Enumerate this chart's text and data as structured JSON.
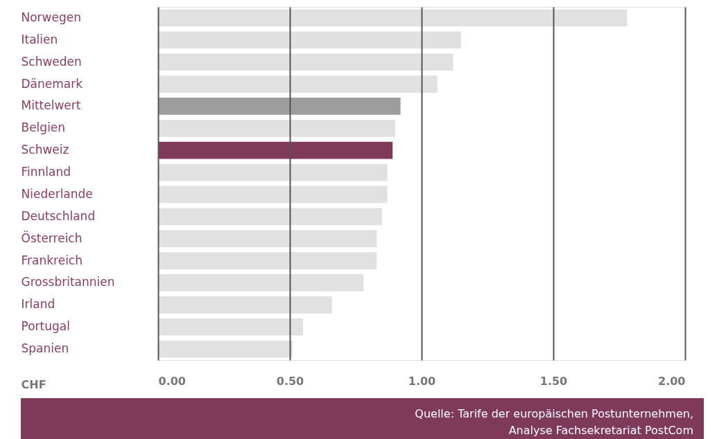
{
  "chart_data": {
    "type": "bar",
    "orientation": "horizontal",
    "xlabel": "CHF",
    "categories": [
      "Norwegen",
      "Italien",
      "Schweden",
      "Dänemark",
      "Mittelwert",
      "Belgien",
      "Schweiz",
      "Finnland",
      "Niederlande",
      "Deutschland",
      "Österreich",
      "Frankreich",
      "Grossbritannien",
      "Irland",
      "Portugal",
      "Spanien"
    ],
    "values": [
      1.78,
      1.15,
      1.12,
      1.06,
      0.92,
      0.9,
      0.89,
      0.87,
      0.87,
      0.85,
      0.83,
      0.83,
      0.78,
      0.66,
      0.55,
      0.51
    ],
    "colors": [
      "#e1e1e1",
      "#e1e1e1",
      "#e1e1e1",
      "#e1e1e1",
      "#9d9d9d",
      "#e1e1e1",
      "#7f3a5a",
      "#e1e1e1",
      "#e1e1e1",
      "#e1e1e1",
      "#e1e1e1",
      "#e1e1e1",
      "#e1e1e1",
      "#e1e1e1",
      "#e1e1e1",
      "#e1e1e1"
    ],
    "xlim": [
      0,
      2
    ],
    "xticks": [
      {
        "value": 0,
        "label": "0.00"
      },
      {
        "value": 0.5,
        "label": "0.50"
      },
      {
        "value": 1,
        "label": "1.00"
      },
      {
        "value": 1.5,
        "label": "1.50"
      },
      {
        "value": 2,
        "label": "2.00"
      }
    ],
    "grid": "x",
    "annotations": [
      "Quelle: Tarife der europäischen Postunternehmen,",
      "Analyse Fachsekretariat PostCom"
    ]
  }
}
